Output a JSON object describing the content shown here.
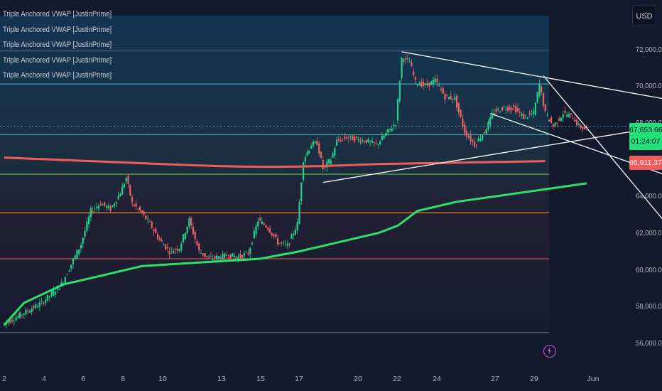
{
  "legend": {
    "items": [
      "Triple Anchored VWAP [JustinPrime]",
      "Triple Anchored VWAP [JustinPrime]",
      "Triple Anchored VWAP [JustinPrime]",
      "Triple Anchored VWAP [JustinPrime]",
      "Triple Anchored VWAP [JustinPrime]"
    ]
  },
  "toolbar": {
    "currency": "USD"
  },
  "price_axis": {
    "ticks": [
      "72,000.00",
      "70,000.00",
      "68,000.00",
      "64,000.00",
      "62,000.00",
      "60,000.00",
      "58,000.00",
      "56,000.00"
    ]
  },
  "time_axis": {
    "ticks": [
      "2",
      "4",
      "6",
      "8",
      "10",
      "13",
      "15",
      "17",
      "20",
      "22",
      "24",
      "27",
      "29",
      "Jun"
    ]
  },
  "current_price": {
    "value": "67,653.66",
    "countdown": "01:24:07"
  },
  "vwap_price": {
    "value": "65,911.37"
  },
  "colors": {
    "background": "#131a2e",
    "up": "#22d28a",
    "down": "#f06363",
    "vwap_red": "#f05b5b",
    "vwap_green": "#2ee06a",
    "level_orange": "#f59a2d",
    "level_green": "#7acc5a",
    "level_blue": "#5ab8e8",
    "trendline": "#ffffff"
  },
  "icons": {
    "lightning": "lightning-icon"
  },
  "chart_data": {
    "type": "candlestick",
    "symbol_currency": "USD",
    "x_ticks": [
      "2",
      "4",
      "6",
      "8",
      "10",
      "13",
      "15",
      "17",
      "20",
      "22",
      "24",
      "27",
      "29",
      "Jun"
    ],
    "ylim": [
      55800,
      72800
    ],
    "close_path": [
      [
        0,
        57000
      ],
      [
        2,
        58200
      ],
      [
        3,
        59200
      ],
      [
        4,
        61400
      ],
      [
        4.5,
        63200
      ],
      [
        5,
        63600
      ],
      [
        5.5,
        63300
      ],
      [
        6,
        64200
      ],
      [
        6.3,
        65000
      ],
      [
        6.6,
        63600
      ],
      [
        7,
        63200
      ],
      [
        7.5,
        62500
      ],
      [
        8,
        61600
      ],
      [
        8.5,
        61000
      ],
      [
        9,
        61200
      ],
      [
        9.5,
        62700
      ],
      [
        10,
        61000
      ],
      [
        10.5,
        60600
      ],
      [
        11,
        60700
      ],
      [
        11.5,
        60800
      ],
      [
        12,
        60700
      ],
      [
        12.5,
        60900
      ],
      [
        13,
        62700
      ],
      [
        13.5,
        62300
      ],
      [
        14,
        61500
      ],
      [
        14.5,
        61300
      ],
      [
        15,
        62500
      ],
      [
        15.3,
        66000
      ],
      [
        15.7,
        66800
      ],
      [
        16,
        66900
      ],
      [
        16.3,
        65500
      ],
      [
        16.7,
        66000
      ],
      [
        17,
        67000
      ],
      [
        17.5,
        67200
      ],
      [
        18,
        67100
      ],
      [
        18.5,
        67000
      ],
      [
        19,
        66800
      ],
      [
        19.5,
        67400
      ],
      [
        20,
        68000
      ],
      [
        20.3,
        71500
      ],
      [
        20.7,
        71300
      ],
      [
        21,
        70200
      ],
      [
        21.5,
        70000
      ],
      [
        22,
        70300
      ],
      [
        22.5,
        69400
      ],
      [
        23,
        69300
      ],
      [
        23.5,
        67500
      ],
      [
        24,
        66800
      ],
      [
        24.5,
        67500
      ],
      [
        25,
        68600
      ],
      [
        25.5,
        68800
      ],
      [
        26,
        68800
      ],
      [
        26.5,
        68300
      ],
      [
        27,
        68500
      ],
      [
        27.3,
        70100
      ],
      [
        27.6,
        68500
      ],
      [
        28,
        67800
      ],
      [
        28.5,
        68500
      ],
      [
        29,
        68300
      ],
      [
        29.3,
        67800
      ],
      [
        29.6,
        67650
      ]
    ],
    "vwap_green": [
      [
        0,
        57000
      ],
      [
        1,
        58200
      ],
      [
        3,
        59200
      ],
      [
        5,
        59700
      ],
      [
        7,
        60200
      ],
      [
        10,
        60400
      ],
      [
        13,
        60600
      ],
      [
        15,
        61000
      ],
      [
        17,
        61500
      ],
      [
        19,
        62000
      ],
      [
        20,
        62400
      ],
      [
        21,
        63200
      ],
      [
        23,
        63700
      ],
      [
        25,
        64000
      ],
      [
        27,
        64300
      ],
      [
        29.6,
        64700
      ]
    ],
    "vwap_red": {
      "value": 65911.37,
      "start": 66100
    },
    "horizontal_levels": {
      "top_gray": 71900,
      "blue": 70100,
      "dotted_cyan": 67800,
      "teal": 67350,
      "green": 65200,
      "orange": 63100,
      "red": 60600,
      "bottom_gray": 56600
    },
    "trendlines": [
      {
        "from": [
          20.2,
          71850
        ],
        "to": [
          33.5,
          69300
        ]
      },
      {
        "from": [
          16.2,
          64750
        ],
        "to": [
          33.5,
          67800
        ]
      },
      {
        "from": [
          24.7,
          68500
        ],
        "to": [
          33.5,
          65200
        ]
      },
      {
        "from": [
          27.4,
          70550
        ],
        "to": [
          33.5,
          62700
        ]
      }
    ],
    "last_price": 67653.66
  }
}
